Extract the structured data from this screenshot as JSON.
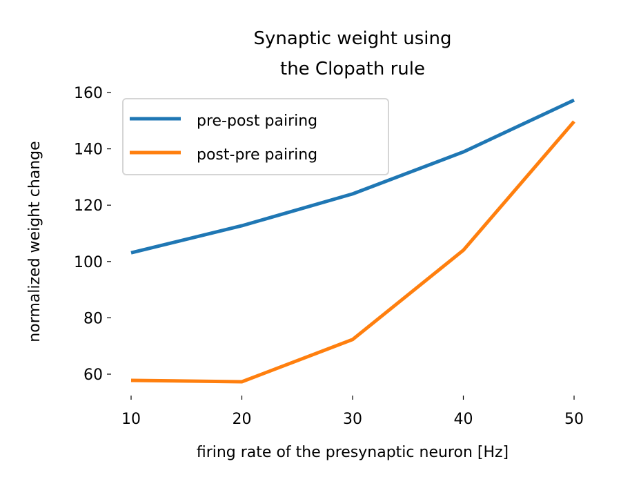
{
  "chart_data": {
    "type": "line",
    "title": "Synaptic weight using\nthe Clopath rule",
    "xlabel": "firing rate of the presynaptic neuron [Hz]",
    "ylabel": "normalized weight change",
    "x": [
      10,
      20,
      30,
      40,
      50
    ],
    "xticks": [
      10,
      20,
      30,
      40,
      50
    ],
    "yticks": [
      60,
      80,
      100,
      120,
      140,
      160
    ],
    "xlim": [
      10,
      50
    ],
    "ylim": [
      55,
      160
    ],
    "grid": false,
    "legend_position": "upper-left",
    "series": [
      {
        "name": "pre-post pairing",
        "color": "#1f77b4",
        "values": [
          103.1,
          112.7,
          124.0,
          138.9,
          157.3
        ]
      },
      {
        "name": "post-pre pairing",
        "color": "#ff7f0e",
        "values": [
          57.8,
          57.3,
          72.3,
          104.0,
          149.7
        ]
      }
    ]
  }
}
